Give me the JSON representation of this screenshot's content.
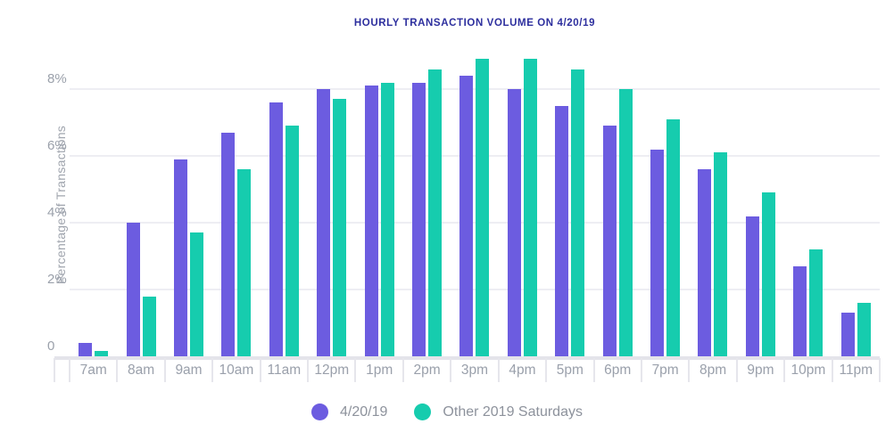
{
  "chart_data": {
    "type": "bar",
    "title": "HOURLY TRANSACTION VOLUME ON 4/20/19",
    "xlabel": "",
    "ylabel": "Percentage of Transactions",
    "categories": [
      "7am",
      "8am",
      "9am",
      "10am",
      "11am",
      "12pm",
      "1pm",
      "2pm",
      "3pm",
      "4pm",
      "5pm",
      "6pm",
      "7pm",
      "8pm",
      "9pm",
      "10pm",
      "11pm"
    ],
    "series": [
      {
        "name": "4/20/19",
        "color": "#6c5ce0",
        "values": [
          0.4,
          4.0,
          5.9,
          6.7,
          7.6,
          8.0,
          8.1,
          8.2,
          8.4,
          8.0,
          7.5,
          6.9,
          6.2,
          5.6,
          4.2,
          2.7,
          1.3
        ]
      },
      {
        "name": "Other 2019 Saturdays",
        "color": "#16ccae",
        "values": [
          0.15,
          1.8,
          3.7,
          5.6,
          6.9,
          7.7,
          8.2,
          8.6,
          8.9,
          8.9,
          8.6,
          8.0,
          7.1,
          6.1,
          4.9,
          3.2,
          1.6
        ]
      }
    ],
    "yticks": [
      {
        "value": 0,
        "label": "0"
      },
      {
        "value": 2,
        "label": "2%"
      },
      {
        "value": 4,
        "label": "4%"
      },
      {
        "value": 6,
        "label": "6%"
      },
      {
        "value": 8,
        "label": "8%"
      }
    ],
    "gridline_values": [
      2,
      4,
      6,
      8
    ],
    "ylim": [
      0,
      9.2
    ],
    "grid": true,
    "legend_position": "bottom",
    "units": "percent"
  },
  "colors": {
    "title": "#2d2f9e",
    "axis_text": "#9aa0ab",
    "legend_text": "#8d929c",
    "gridline": "#eeeef3",
    "baseline": "#e4e4ea",
    "series_420": "#6c5ce0",
    "series_other": "#16ccae"
  }
}
